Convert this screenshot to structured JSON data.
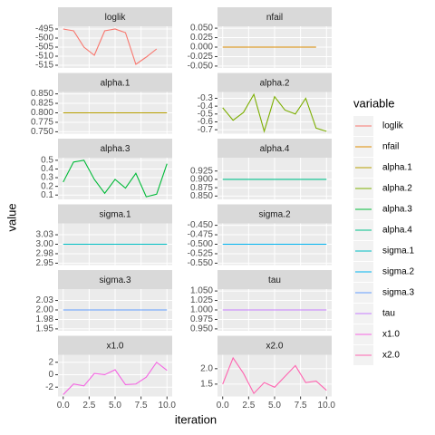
{
  "chart_data": {
    "type": "facet_line",
    "xlabel": "iteration",
    "ylabel": "value",
    "legend_title": "variable",
    "x": [
      0,
      1,
      2,
      3,
      4,
      5,
      6,
      7,
      8,
      9,
      10
    ],
    "xlim": [
      -0.5,
      10.5
    ],
    "xticks": [
      {
        "value": 0,
        "label": "0.0"
      },
      {
        "value": 2.5,
        "label": "2.5"
      },
      {
        "value": 5,
        "label": "5.0"
      },
      {
        "value": 7.5,
        "label": "7.5"
      },
      {
        "value": 10,
        "label": "10.0"
      }
    ],
    "series": [
      {
        "name": "loglik",
        "color": "#F8766D",
        "values": [
          -495,
          -496,
          -505,
          -509.5,
          -496,
          -495,
          -497,
          -514.5,
          -510.5,
          -506,
          null
        ],
        "ylim": [
          -516.5,
          -493.5
        ],
        "yticks": [
          -495,
          -500,
          -505,
          -510,
          -515
        ]
      },
      {
        "name": "nfail",
        "color": "#DE8C00",
        "values": [
          0,
          0,
          0,
          0,
          0,
          0,
          0,
          0,
          0,
          0,
          null
        ],
        "ylim": [
          -0.055,
          0.055
        ],
        "yticks": [
          {
            "value": 0.05,
            "label": "0.050"
          },
          {
            "value": 0.025,
            "label": "0.025"
          },
          {
            "value": 0,
            "label": "0.000"
          },
          {
            "value": -0.025,
            "label": "-0.025"
          },
          {
            "value": -0.05,
            "label": "-0.050"
          }
        ]
      },
      {
        "name": "alpha.1",
        "color": "#B79F00",
        "values": [
          0.8,
          0.8,
          0.8,
          0.8,
          0.8,
          0.8,
          0.8,
          0.8,
          0.8,
          0.8,
          0.8
        ],
        "ylim": [
          0.745,
          0.855
        ],
        "yticks": [
          {
            "value": 0.85,
            "label": "0.850"
          },
          {
            "value": 0.825,
            "label": "0.825"
          },
          {
            "value": 0.8,
            "label": "0.800"
          },
          {
            "value": 0.775,
            "label": "0.775"
          },
          {
            "value": 0.75,
            "label": "0.750"
          }
        ]
      },
      {
        "name": "alpha.2",
        "color": "#7CAE00",
        "values": [
          -0.42,
          -0.58,
          -0.48,
          -0.25,
          -0.72,
          -0.28,
          -0.45,
          -0.5,
          -0.3,
          -0.68,
          -0.72
        ],
        "ylim": [
          -0.75,
          -0.22
        ],
        "yticks": [
          -0.3,
          -0.4,
          -0.5,
          -0.6,
          -0.7
        ]
      },
      {
        "name": "alpha.3",
        "color": "#00BA38",
        "values": [
          0.25,
          0.48,
          0.5,
          0.28,
          0.12,
          0.28,
          0.18,
          0.35,
          0.08,
          0.11,
          0.46
        ],
        "ylim": [
          0.05,
          0.53
        ],
        "yticks": [
          0.5,
          0.4,
          0.3,
          0.2,
          0.1
        ]
      },
      {
        "name": "alpha.4",
        "color": "#00C08B",
        "values": [
          0.9,
          0.9,
          0.9,
          0.9,
          0.9,
          0.9,
          0.9,
          0.9,
          0.9,
          0.9,
          0.9
        ],
        "ylim": [
          0.84,
          0.965
        ],
        "yticks": [
          {
            "value": 0.925,
            "label": "0.925"
          },
          {
            "value": 0.9,
            "label": "0.900"
          },
          {
            "value": 0.875,
            "label": "0.875"
          },
          {
            "value": 0.85,
            "label": "0.850"
          }
        ]
      },
      {
        "name": "sigma.1",
        "color": "#00BFC4",
        "values": [
          3,
          3,
          3,
          3,
          3,
          3,
          3,
          3,
          3,
          3,
          3
        ],
        "ylim": [
          2.945,
          3.055
        ],
        "yticks": [
          {
            "value": 3.025,
            "label": "3.03"
          },
          {
            "value": 3,
            "label": "3.00"
          },
          {
            "value": 2.975,
            "label": "2.98"
          },
          {
            "value": 2.95,
            "label": "2.95"
          }
        ]
      },
      {
        "name": "sigma.2",
        "color": "#00B4F0",
        "values": [
          -0.5,
          -0.5,
          -0.5,
          -0.5,
          -0.5,
          -0.5,
          -0.5,
          -0.5,
          -0.5,
          -0.5,
          -0.5
        ],
        "ylim": [
          -0.555,
          -0.445
        ],
        "yticks": [
          {
            "value": -0.45,
            "label": "-0.450"
          },
          {
            "value": -0.475,
            "label": "-0.475"
          },
          {
            "value": -0.5,
            "label": "-0.500"
          },
          {
            "value": -0.525,
            "label": "-0.525"
          },
          {
            "value": -0.55,
            "label": "-0.550"
          }
        ]
      },
      {
        "name": "sigma.3",
        "color": "#619CFF",
        "values": [
          2,
          2,
          2,
          2,
          2,
          2,
          2,
          2,
          2,
          2,
          2
        ],
        "ylim": [
          1.945,
          2.055
        ],
        "yticks": [
          {
            "value": 2.025,
            "label": "2.03"
          },
          {
            "value": 2,
            "label": "2.00"
          },
          {
            "value": 1.975,
            "label": "1.98"
          },
          {
            "value": 1.95,
            "label": "1.95"
          }
        ]
      },
      {
        "name": "tau",
        "color": "#C77CFF",
        "values": [
          1,
          1,
          1,
          1,
          1,
          1,
          1,
          1,
          1,
          1,
          1
        ],
        "ylim": [
          0.945,
          1.055
        ],
        "yticks": [
          {
            "value": 1.05,
            "label": "1.050"
          },
          {
            "value": 1.025,
            "label": "1.025"
          },
          {
            "value": 1,
            "label": "1.000"
          },
          {
            "value": 0.975,
            "label": "0.975"
          },
          {
            "value": 0.95,
            "label": "0.950"
          }
        ]
      },
      {
        "name": "x1.0",
        "color": "#F564E3",
        "values": [
          -3.2,
          -1.5,
          -1.8,
          0.2,
          0,
          0.8,
          -1.6,
          -1.5,
          -0.4,
          2,
          0.7
        ],
        "ylim": [
          -3.5,
          3.2
        ],
        "yticks": [
          2,
          0,
          -2
        ]
      },
      {
        "name": "x2.0",
        "color": "#FF64B0",
        "values": [
          1.5,
          2.35,
          1.85,
          1.2,
          1.55,
          1.4,
          1.75,
          2.1,
          1.55,
          1.6,
          1.3
        ],
        "ylim": [
          1.1,
          2.45
        ],
        "yticks": [
          {
            "value": 2,
            "label": "2.0"
          },
          {
            "value": 1.5,
            "label": "1.5"
          }
        ]
      }
    ]
  }
}
